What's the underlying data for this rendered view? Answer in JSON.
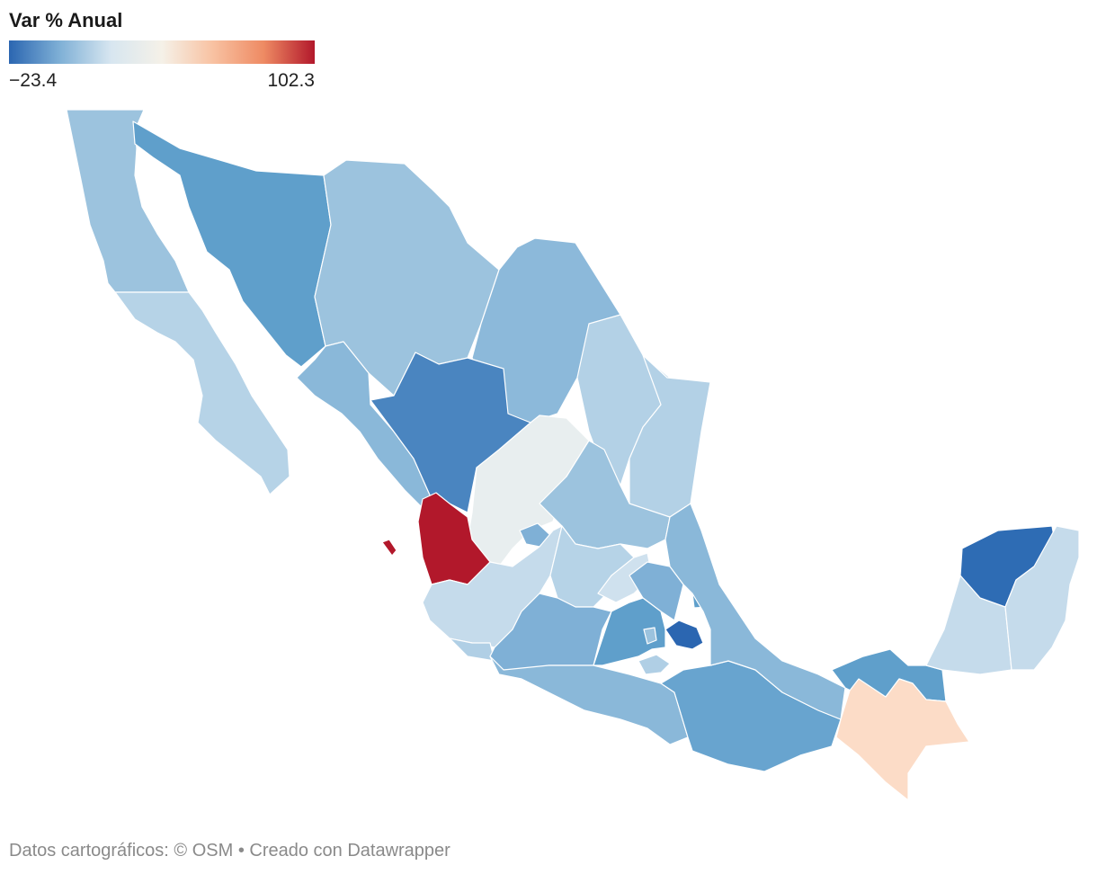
{
  "legend": {
    "title": "Var % Anual",
    "min_label": "−23.4",
    "max_label": "102.3",
    "gradient": [
      "#2b66b1",
      "#7fb0d6",
      "#d7e6f0",
      "#f5f1e8",
      "#f8c2a2",
      "#ee8a63",
      "#b2182b"
    ]
  },
  "map": {
    "regions": [
      {
        "name": "Baja California",
        "color": "#9cc3de"
      },
      {
        "name": "Baja California Sur",
        "color": "#b6d3e7"
      },
      {
        "name": "Sonora",
        "color": "#5f9fcb"
      },
      {
        "name": "Chihuahua",
        "color": "#9cc3de"
      },
      {
        "name": "Coahuila",
        "color": "#8cb9da"
      },
      {
        "name": "Nuevo León",
        "color": "#b3d1e6"
      },
      {
        "name": "Tamaulipas",
        "color": "#b3d1e6"
      },
      {
        "name": "Sinaloa",
        "color": "#8ab8d9"
      },
      {
        "name": "Durango",
        "color": "#4a85c0"
      },
      {
        "name": "Zacatecas",
        "color": "#e8eeef"
      },
      {
        "name": "San Luis Potosí",
        "color": "#9cc3de"
      },
      {
        "name": "Nayarit",
        "color": "#b2182b"
      },
      {
        "name": "Aguascalientes",
        "color": "#7fb0d6"
      },
      {
        "name": "Jalisco",
        "color": "#c5dbeb"
      },
      {
        "name": "Guanajuato",
        "color": "#b6d3e7"
      },
      {
        "name": "Querétaro",
        "color": "#cfe1ee"
      },
      {
        "name": "Hidalgo",
        "color": "#7fb0d6"
      },
      {
        "name": "Colima",
        "color": "#b0cfe5"
      },
      {
        "name": "Michoacán",
        "color": "#7fb0d6"
      },
      {
        "name": "Estado de México",
        "color": "#5f9fcb"
      },
      {
        "name": "Ciudad de México",
        "color": "#9cc3de"
      },
      {
        "name": "Tlaxcala",
        "color": "#5f9fcb"
      },
      {
        "name": "Puebla",
        "color": "#2b66b1"
      },
      {
        "name": "Morelos",
        "color": "#b0cfe5"
      },
      {
        "name": "Guerrero",
        "color": "#8ab8d9"
      },
      {
        "name": "Oaxaca",
        "color": "#68a4cf"
      },
      {
        "name": "Veracruz",
        "color": "#8ab8d9"
      },
      {
        "name": "Tabasco",
        "color": "#5f9fcb"
      },
      {
        "name": "Chiapas",
        "color": "#fcdcc7"
      },
      {
        "name": "Campeche",
        "color": "#c5dbeb"
      },
      {
        "name": "Yucatán",
        "color": "#2e6cb4"
      },
      {
        "name": "Quintana Roo",
        "color": "#c5dbeb"
      }
    ]
  },
  "footer": "Datos cartográficos: © OSM  • Creado con Datawrapper"
}
